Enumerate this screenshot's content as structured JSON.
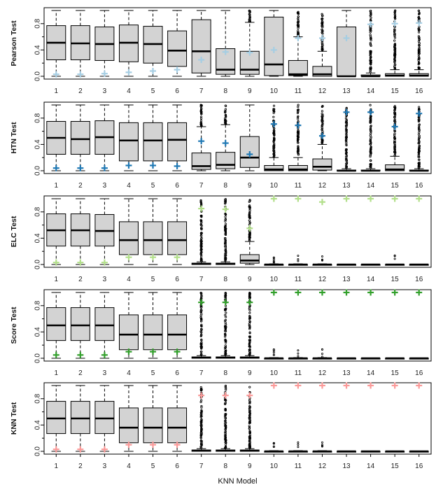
{
  "chart_data": {
    "type": "boxplot",
    "xlabel": "KNN Model",
    "categories": [
      "1",
      "2",
      "3",
      "4",
      "5",
      "6",
      "7",
      "8",
      "9",
      "10",
      "11",
      "12",
      "13",
      "14",
      "15",
      "16"
    ],
    "ylim": [
      0,
      1
    ],
    "yticks": [
      "0.0",
      "0.4",
      "0.8"
    ],
    "panels": [
      {
        "name": "Pearson Test",
        "marker_color": "#a6cee3",
        "boxes": [
          {
            "q1": 0.25,
            "med": 0.51,
            "q3": 0.77,
            "lo": 0.0,
            "hi": 1.0,
            "out": "none",
            "mean": 0.03
          },
          {
            "q1": 0.25,
            "med": 0.5,
            "q3": 0.77,
            "lo": 0.0,
            "hi": 1.0,
            "out": "none",
            "mean": 0.03
          },
          {
            "q1": 0.24,
            "med": 0.49,
            "q3": 0.75,
            "lo": 0.0,
            "hi": 1.0,
            "out": "none",
            "mean": 0.04
          },
          {
            "q1": 0.22,
            "med": 0.51,
            "q3": 0.78,
            "lo": 0.0,
            "hi": 1.0,
            "out": "none",
            "mean": 0.06
          },
          {
            "q1": 0.2,
            "med": 0.49,
            "q3": 0.76,
            "lo": 0.0,
            "hi": 1.0,
            "out": "none",
            "mean": 0.08
          },
          {
            "q1": 0.15,
            "med": 0.39,
            "q3": 0.69,
            "lo": 0.0,
            "hi": 1.0,
            "out": "none",
            "mean": 0.1
          },
          {
            "q1": 0.05,
            "med": 0.38,
            "q3": 0.86,
            "lo": 0.0,
            "hi": 1.0,
            "out": "none",
            "mean": 0.25
          },
          {
            "q1": 0.03,
            "med": 0.1,
            "q3": 0.42,
            "lo": 0.0,
            "hi": 1.0,
            "out": "none",
            "mean": 0.37
          },
          {
            "q1": 0.03,
            "med": 0.1,
            "q3": 0.38,
            "lo": 0.0,
            "hi": 0.82,
            "out": "above",
            "mean": 0.36
          },
          {
            "q1": 0.01,
            "med": 0.18,
            "q3": 0.9,
            "lo": 0.0,
            "hi": 1.0,
            "out": "none",
            "mean": 0.4
          },
          {
            "q1": 0.01,
            "med": 0.03,
            "q3": 0.24,
            "lo": 0.0,
            "hi": 0.6,
            "out": "above",
            "mean": 0.58
          },
          {
            "q1": 0.0,
            "med": 0.03,
            "q3": 0.15,
            "lo": 0.0,
            "hi": 0.38,
            "out": "above",
            "mean": 0.58
          },
          {
            "q1": 0.0,
            "med": 0.0,
            "q3": 0.75,
            "lo": 0.0,
            "hi": 1.0,
            "out": "none",
            "mean": 0.58
          },
          {
            "q1": 0.0,
            "med": 0.0,
            "q3": 0.02,
            "lo": 0.0,
            "hi": 0.05,
            "out": "above",
            "mean": 0.79
          },
          {
            "q1": 0.0,
            "med": 0.01,
            "q3": 0.04,
            "lo": 0.0,
            "hi": 0.1,
            "out": "above",
            "mean": 0.8
          },
          {
            "q1": 0.0,
            "med": 0.01,
            "q3": 0.04,
            "lo": 0.0,
            "hi": 0.1,
            "out": "above",
            "mean": 0.81
          }
        ]
      },
      {
        "name": "HTN Test",
        "marker_color": "#1f78b4",
        "boxes": [
          {
            "q1": 0.25,
            "med": 0.5,
            "q3": 0.75,
            "lo": 0.0,
            "hi": 1.0,
            "out": "none",
            "mean": 0.04
          },
          {
            "q1": 0.25,
            "med": 0.48,
            "q3": 0.75,
            "lo": 0.0,
            "hi": 1.0,
            "out": "none",
            "mean": 0.04
          },
          {
            "q1": 0.25,
            "med": 0.51,
            "q3": 0.76,
            "lo": 0.0,
            "hi": 1.0,
            "out": "none",
            "mean": 0.04
          },
          {
            "q1": 0.15,
            "med": 0.46,
            "q3": 0.73,
            "lo": 0.0,
            "hi": 1.0,
            "out": "none",
            "mean": 0.08
          },
          {
            "q1": 0.15,
            "med": 0.46,
            "q3": 0.73,
            "lo": 0.0,
            "hi": 1.0,
            "out": "none",
            "mean": 0.08
          },
          {
            "q1": 0.15,
            "med": 0.47,
            "q3": 0.73,
            "lo": 0.0,
            "hi": 1.0,
            "out": "none",
            "mean": 0.07
          },
          {
            "q1": 0.02,
            "med": 0.07,
            "q3": 0.27,
            "lo": 0.0,
            "hi": 0.67,
            "out": "above",
            "mean": 0.45
          },
          {
            "q1": 0.03,
            "med": 0.09,
            "q3": 0.28,
            "lo": 0.0,
            "hi": 0.7,
            "out": "above",
            "mean": 0.42
          },
          {
            "q1": 0.05,
            "med": 0.2,
            "q3": 0.52,
            "lo": 0.0,
            "hi": 1.0,
            "out": "none",
            "mean": 0.25
          },
          {
            "q1": 0.0,
            "med": 0.02,
            "q3": 0.08,
            "lo": 0.0,
            "hi": 0.2,
            "out": "above",
            "mean": 0.71
          },
          {
            "q1": 0.0,
            "med": 0.02,
            "q3": 0.08,
            "lo": 0.0,
            "hi": 0.2,
            "out": "above",
            "mean": 0.69
          },
          {
            "q1": 0.01,
            "med": 0.06,
            "q3": 0.18,
            "lo": 0.0,
            "hi": 0.4,
            "out": "above",
            "mean": 0.53
          },
          {
            "q1": 0.0,
            "med": 0.0,
            "q3": 0.01,
            "lo": 0.0,
            "hi": 0.03,
            "out": "above",
            "mean": 0.89
          },
          {
            "q1": 0.0,
            "med": 0.0,
            "q3": 0.01,
            "lo": 0.0,
            "hi": 0.03,
            "out": "above",
            "mean": 0.89
          },
          {
            "q1": 0.0,
            "med": 0.02,
            "q3": 0.09,
            "lo": 0.0,
            "hi": 0.22,
            "out": "above",
            "mean": 0.67
          },
          {
            "q1": 0.0,
            "med": 0.0,
            "q3": 0.01,
            "lo": 0.0,
            "hi": 0.03,
            "out": "above",
            "mean": 0.87
          }
        ]
      },
      {
        "name": "ELC Test",
        "marker_color": "#b2df8a",
        "boxes": [
          {
            "q1": 0.28,
            "med": 0.52,
            "q3": 0.77,
            "lo": 0.0,
            "hi": 1.0,
            "out": "none",
            "mean": 0.03
          },
          {
            "q1": 0.28,
            "med": 0.52,
            "q3": 0.77,
            "lo": 0.0,
            "hi": 1.0,
            "out": "none",
            "mean": 0.03
          },
          {
            "q1": 0.28,
            "med": 0.51,
            "q3": 0.76,
            "lo": 0.0,
            "hi": 1.0,
            "out": "none",
            "mean": 0.03
          },
          {
            "q1": 0.15,
            "med": 0.37,
            "q3": 0.65,
            "lo": 0.0,
            "hi": 1.0,
            "out": "none",
            "mean": 0.11
          },
          {
            "q1": 0.15,
            "med": 0.37,
            "q3": 0.65,
            "lo": 0.0,
            "hi": 1.0,
            "out": "none",
            "mean": 0.11
          },
          {
            "q1": 0.15,
            "med": 0.37,
            "q3": 0.65,
            "lo": 0.0,
            "hi": 1.0,
            "out": "none",
            "mean": 0.11
          },
          {
            "q1": 0.0,
            "med": 0.01,
            "q3": 0.02,
            "lo": 0.0,
            "hi": 0.04,
            "out": "above",
            "mean": 0.85
          },
          {
            "q1": 0.0,
            "med": 0.01,
            "q3": 0.02,
            "lo": 0.0,
            "hi": 0.04,
            "out": "above",
            "mean": 0.84
          },
          {
            "q1": 0.02,
            "med": 0.06,
            "q3": 0.15,
            "lo": 0.0,
            "hi": 0.35,
            "out": "above",
            "mean": 0.55
          },
          {
            "q1": 0.0,
            "med": 0.0,
            "q3": 0.0,
            "lo": 0.0,
            "hi": 0.01,
            "out": "few",
            "mean": 1.0
          },
          {
            "q1": 0.0,
            "med": 0.0,
            "q3": 0.0,
            "lo": 0.0,
            "hi": 0.01,
            "out": "few",
            "mean": 1.0
          },
          {
            "q1": 0.0,
            "med": 0.0,
            "q3": 0.0,
            "lo": 0.0,
            "hi": 0.01,
            "out": "few",
            "mean": 0.95
          },
          {
            "q1": 0.0,
            "med": 0.0,
            "q3": 0.0,
            "lo": 0.0,
            "hi": 0.0,
            "out": "none",
            "mean": 1.0
          },
          {
            "q1": 0.0,
            "med": 0.0,
            "q3": 0.0,
            "lo": 0.0,
            "hi": 0.0,
            "out": "none",
            "mean": 1.0
          },
          {
            "q1": 0.0,
            "med": 0.0,
            "q3": 0.0,
            "lo": 0.0,
            "hi": 0.0,
            "out": "few",
            "mean": 1.0
          },
          {
            "q1": 0.0,
            "med": 0.0,
            "q3": 0.0,
            "lo": 0.0,
            "hi": 0.0,
            "out": "none",
            "mean": 1.0
          }
        ]
      },
      {
        "name": "Score Test",
        "marker_color": "#33a02c",
        "boxes": [
          {
            "q1": 0.27,
            "med": 0.5,
            "q3": 0.77,
            "lo": 0.0,
            "hi": 1.0,
            "out": "none",
            "mean": 0.05
          },
          {
            "q1": 0.27,
            "med": 0.5,
            "q3": 0.77,
            "lo": 0.0,
            "hi": 1.0,
            "out": "none",
            "mean": 0.05
          },
          {
            "q1": 0.27,
            "med": 0.5,
            "q3": 0.77,
            "lo": 0.0,
            "hi": 1.0,
            "out": "none",
            "mean": 0.05
          },
          {
            "q1": 0.13,
            "med": 0.36,
            "q3": 0.66,
            "lo": 0.0,
            "hi": 1.0,
            "out": "none",
            "mean": 0.1
          },
          {
            "q1": 0.13,
            "med": 0.36,
            "q3": 0.66,
            "lo": 0.0,
            "hi": 1.0,
            "out": "none",
            "mean": 0.1
          },
          {
            "q1": 0.13,
            "med": 0.36,
            "q3": 0.66,
            "lo": 0.0,
            "hi": 1.0,
            "out": "none",
            "mean": 0.1
          },
          {
            "q1": 0.0,
            "med": 0.01,
            "q3": 0.02,
            "lo": 0.0,
            "hi": 0.04,
            "out": "above",
            "mean": 0.85
          },
          {
            "q1": 0.0,
            "med": 0.01,
            "q3": 0.02,
            "lo": 0.0,
            "hi": 0.04,
            "out": "above",
            "mean": 0.85
          },
          {
            "q1": 0.0,
            "med": 0.01,
            "q3": 0.02,
            "lo": 0.0,
            "hi": 0.04,
            "out": "above",
            "mean": 0.85
          },
          {
            "q1": 0.0,
            "med": 0.0,
            "q3": 0.0,
            "lo": 0.0,
            "hi": 0.01,
            "out": "few",
            "mean": 1.0
          },
          {
            "q1": 0.0,
            "med": 0.0,
            "q3": 0.0,
            "lo": 0.0,
            "hi": 0.01,
            "out": "few",
            "mean": 1.0
          },
          {
            "q1": 0.0,
            "med": 0.0,
            "q3": 0.0,
            "lo": 0.0,
            "hi": 0.01,
            "out": "few",
            "mean": 1.0
          },
          {
            "q1": 0.0,
            "med": 0.0,
            "q3": 0.0,
            "lo": 0.0,
            "hi": 0.0,
            "out": "none",
            "mean": 1.0
          },
          {
            "q1": 0.0,
            "med": 0.0,
            "q3": 0.0,
            "lo": 0.0,
            "hi": 0.0,
            "out": "none",
            "mean": 1.0
          },
          {
            "q1": 0.0,
            "med": 0.0,
            "q3": 0.0,
            "lo": 0.0,
            "hi": 0.0,
            "out": "none",
            "mean": 1.0
          },
          {
            "q1": 0.0,
            "med": 0.0,
            "q3": 0.0,
            "lo": 0.0,
            "hi": 0.0,
            "out": "none",
            "mean": 1.0
          }
        ]
      },
      {
        "name": "KNN Test",
        "marker_color": "#fb9a99",
        "boxes": [
          {
            "q1": 0.27,
            "med": 0.5,
            "q3": 0.76,
            "lo": 0.0,
            "hi": 1.0,
            "out": "none",
            "mean": 0.03
          },
          {
            "q1": 0.27,
            "med": 0.5,
            "q3": 0.76,
            "lo": 0.0,
            "hi": 1.0,
            "out": "none",
            "mean": 0.03
          },
          {
            "q1": 0.27,
            "med": 0.5,
            "q3": 0.76,
            "lo": 0.0,
            "hi": 1.0,
            "out": "none",
            "mean": 0.03
          },
          {
            "q1": 0.13,
            "med": 0.36,
            "q3": 0.66,
            "lo": 0.0,
            "hi": 1.0,
            "out": "none",
            "mean": 0.1
          },
          {
            "q1": 0.13,
            "med": 0.36,
            "q3": 0.66,
            "lo": 0.0,
            "hi": 1.0,
            "out": "none",
            "mean": 0.1
          },
          {
            "q1": 0.13,
            "med": 0.36,
            "q3": 0.66,
            "lo": 0.0,
            "hi": 1.0,
            "out": "none",
            "mean": 0.1
          },
          {
            "q1": 0.0,
            "med": 0.01,
            "q3": 0.02,
            "lo": 0.0,
            "hi": 0.04,
            "out": "above",
            "mean": 0.85
          },
          {
            "q1": 0.0,
            "med": 0.01,
            "q3": 0.02,
            "lo": 0.0,
            "hi": 0.04,
            "out": "above",
            "mean": 0.85
          },
          {
            "q1": 0.0,
            "med": 0.01,
            "q3": 0.02,
            "lo": 0.0,
            "hi": 0.04,
            "out": "above",
            "mean": 0.85
          },
          {
            "q1": 0.0,
            "med": 0.0,
            "q3": 0.0,
            "lo": 0.0,
            "hi": 0.01,
            "out": "few",
            "mean": 1.0
          },
          {
            "q1": 0.0,
            "med": 0.0,
            "q3": 0.0,
            "lo": 0.0,
            "hi": 0.01,
            "out": "few",
            "mean": 1.0
          },
          {
            "q1": 0.0,
            "med": 0.0,
            "q3": 0.0,
            "lo": 0.0,
            "hi": 0.01,
            "out": "few",
            "mean": 1.0
          },
          {
            "q1": 0.0,
            "med": 0.0,
            "q3": 0.0,
            "lo": 0.0,
            "hi": 0.0,
            "out": "none",
            "mean": 1.0
          },
          {
            "q1": 0.0,
            "med": 0.0,
            "q3": 0.0,
            "lo": 0.0,
            "hi": 0.0,
            "out": "none",
            "mean": 1.0
          },
          {
            "q1": 0.0,
            "med": 0.0,
            "q3": 0.0,
            "lo": 0.0,
            "hi": 0.0,
            "out": "none",
            "mean": 1.0
          },
          {
            "q1": 0.0,
            "med": 0.0,
            "q3": 0.0,
            "lo": 0.0,
            "hi": 0.0,
            "out": "none",
            "mean": 1.0
          }
        ]
      }
    ]
  }
}
